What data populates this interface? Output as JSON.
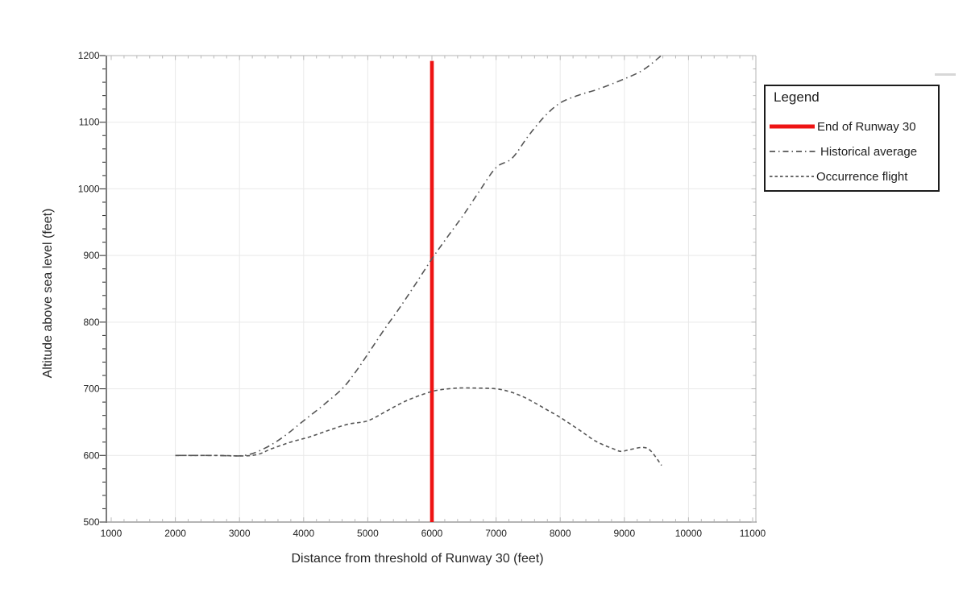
{
  "chart_data": {
    "type": "line",
    "title": "",
    "xlabel": "Distance from threshold of Runway 30 (feet)",
    "ylabel": "Altitude above sea level (feet)",
    "xlim": [
      1000,
      11000
    ],
    "ylim": [
      500,
      1200
    ],
    "x_ticks": [
      1000,
      2000,
      3000,
      4000,
      5000,
      6000,
      7000,
      8000,
      9000,
      10000,
      11000
    ],
    "y_ticks": [
      500,
      600,
      700,
      800,
      900,
      1000,
      1100,
      1200
    ],
    "x_minor_step": 200,
    "y_minor_step": 20,
    "grid": true,
    "legend_position": "right",
    "vline": {
      "label": "End of Runway 30",
      "x": 6000,
      "y_from": 500,
      "y_to": 1192,
      "color": "#ee1414",
      "stroke_width": 4.6
    },
    "series": [
      {
        "name": "Historical average",
        "style": "dashdot",
        "color": "#565656",
        "stroke_width": 1.6,
        "points": [
          [
            2000,
            600
          ],
          [
            2600,
            600
          ],
          [
            3075,
            600
          ],
          [
            3400,
            611
          ],
          [
            3700,
            629
          ],
          [
            4000,
            652
          ],
          [
            4300,
            675
          ],
          [
            4600,
            700
          ],
          [
            4800,
            724
          ],
          [
            5000,
            752
          ],
          [
            5250,
            788
          ],
          [
            5500,
            822
          ],
          [
            5750,
            858
          ],
          [
            6000,
            895
          ],
          [
            6250,
            929
          ],
          [
            6500,
            962
          ],
          [
            6750,
            998
          ],
          [
            7000,
            1032
          ],
          [
            7250,
            1046
          ],
          [
            7500,
            1079
          ],
          [
            7750,
            1108
          ],
          [
            8000,
            1129
          ],
          [
            8300,
            1141
          ],
          [
            8600,
            1150
          ],
          [
            9000,
            1165
          ],
          [
            9300,
            1179
          ],
          [
            9575,
            1200
          ]
        ]
      },
      {
        "name": "Occurrence flight",
        "style": "dashed",
        "color": "#565656",
        "stroke_width": 1.6,
        "points": [
          [
            2000,
            600
          ],
          [
            2600,
            600
          ],
          [
            3200,
            600
          ],
          [
            3500,
            610
          ],
          [
            3800,
            620
          ],
          [
            4100,
            628
          ],
          [
            4400,
            638
          ],
          [
            4700,
            647
          ],
          [
            5000,
            652
          ],
          [
            5300,
            667
          ],
          [
            5600,
            682
          ],
          [
            5900,
            693
          ],
          [
            6100,
            698
          ],
          [
            6400,
            701
          ],
          [
            6700,
            701
          ],
          [
            7000,
            700
          ],
          [
            7200,
            696
          ],
          [
            7400,
            689
          ],
          [
            7600,
            679
          ],
          [
            7800,
            668
          ],
          [
            8000,
            657
          ],
          [
            8300,
            638
          ],
          [
            8560,
            621
          ],
          [
            8850,
            609
          ],
          [
            8950,
            606
          ],
          [
            9100,
            609
          ],
          [
            9300,
            612
          ],
          [
            9420,
            606
          ],
          [
            9580,
            585
          ]
        ]
      }
    ],
    "legend": {
      "title": "Legend",
      "entries": [
        {
          "label": "End of Runway 30",
          "style": "solid",
          "color": "#ee1414",
          "stroke_width": 5,
          "swatch_width": 58
        },
        {
          "label": "Historical average",
          "style": "dashdot",
          "color": "#565656",
          "stroke_width": 1.8,
          "swatch_width": 62
        },
        {
          "label": "Occurrence flight",
          "style": "dashed",
          "color": "#565656",
          "stroke_width": 1.8,
          "swatch_width": 57
        }
      ]
    },
    "colors": {
      "grid": "#e9e9e9",
      "axis_left": "#7c7c7c",
      "axis_bottom": "#9c9c9c",
      "frame": "#b5b5b5",
      "major_tick": "#3a3a3a",
      "minor_tick": "#b8b8b8",
      "text": "#222222"
    }
  }
}
